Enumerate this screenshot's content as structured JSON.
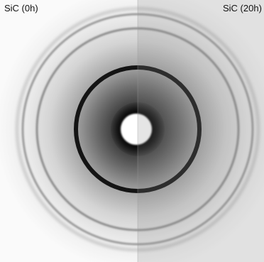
{
  "panels": {
    "left_label": "SiC (0h)",
    "right_label": "SiC (20h)"
  },
  "colors": {
    "background": "#ffffff",
    "ring": "#141414",
    "right_half_tint": "#bdbdbd"
  }
}
